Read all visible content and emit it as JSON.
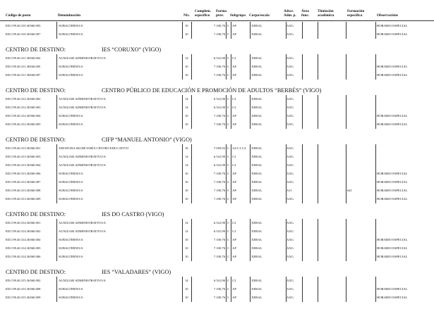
{
  "headers": {
    "codigo": "Código de posto",
    "denominacion": "Denominación",
    "niv": "Niv.",
    "complem": "Complem. específico",
    "forma": "Forma prov.",
    "subgrupo": "Subgrupo",
    "corpo": "Corpo/escala",
    "adscr": "Adscr. Adm. p.",
    "area": "Área func.",
    "titulacion": "Titulación académica",
    "formacion": "Formación específica",
    "observacions": "Observacións"
  },
  "section_label": "CENTRO DE DESTINO:",
  "sections": [
    {
      "name": "",
      "rows": [
        [
          "ED.C99.40.310.36560.005",
          "SUBALTERNO/A",
          "10",
          "7.100,76",
          "C",
          "AP",
          "XERAL",
          "AXG",
          "",
          "",
          "",
          "HORARIO ESPECIAL"
        ],
        [
          "ED.C99.40.310.36560.007",
          "SUBALTERNO/A",
          "10",
          "7.100,76",
          "C",
          "AP",
          "XERAL",
          "AXG",
          "",
          "",
          "",
          "HORARIO ESPECIAL"
        ]
      ]
    },
    {
      "name": "IES “CORUXO” (VIGO)",
      "rows": [
        [
          "ED.C99.40.311.36560.002",
          "AUXILIAR ADMINISTRATIVO/A",
          "14",
          "6.541,90",
          "C",
          "C2",
          "XERAL",
          "AXG",
          "",
          "",
          "",
          ""
        ],
        [
          "ED.C99.40.311.36560.005",
          "SUBALTERNO/A",
          "10",
          "7.100,76",
          "C",
          "AP",
          "XERAL",
          "AXG",
          "",
          "",
          "",
          "HORARIO ESPECIAL"
        ],
        [
          "ED.C99.40.311.36560.007",
          "SUBALTERNO/A",
          "10",
          "7.100,76",
          "C",
          "AP",
          "XERAL",
          "AXG",
          "",
          "",
          "",
          "HORARIO ESPECIAL"
        ]
      ]
    },
    {
      "name": "CENTRO PÚBLICO DE EDUCACIÓN E PROMOCIÓN DE ADULTOS “BERBÉS” (VIGO)",
      "rows": [
        [
          "ED.C99.40.312.36560.002",
          "AUXILIAR ADMINISTRATIVO/A",
          "14",
          "6.541,90",
          "C",
          "C2",
          "XERAL",
          "AXG",
          "",
          "",
          "",
          ""
        ],
        [
          "ED.C99.40.312.36560.003",
          "AUXILIAR ADMINISTRATIVO/A",
          "14",
          "6.541,90",
          "C",
          "C2",
          "XERAL",
          "AXG",
          "",
          "",
          "",
          ""
        ],
        [
          "ED.C99.40.312.36560.004",
          "SUBALTERNO/A",
          "10",
          "7.100,76",
          "C",
          "AP",
          "XERAL",
          "AXG",
          "",
          "",
          "",
          "HORARIO ESPECIAL"
        ],
        [
          "ED.C99.40.312.36560.005",
          "SUBALTERNO/A",
          "10",
          "7.100,76",
          "C",
          "AP",
          "XERAL",
          "AXG",
          "",
          "",
          "",
          "HORARIO ESPECIAL"
        ]
      ]
    },
    {
      "name": "CIFP “MANUEL ANTONIO” (VIGO)",
      "rows": [
        [
          "ED.C99.40.313.36560.001",
          "XEFATURA SECRETARÍA CENTRO EDUCATIVO",
          "18",
          "7.059,92",
          "C",
          "A2-C1-C2",
          "XERAL",
          "AXG",
          "",
          "",
          "",
          ""
        ],
        [
          "ED.C99.40.313.36560.003",
          "AUXILIAR ADMINISTRATIVO/A",
          "14",
          "6.541,90",
          "C",
          "C2",
          "XERAL",
          "AXG",
          "",
          "",
          "",
          ""
        ],
        [
          "ED.C99.40.313.36560.004",
          "AUXILIAR ADMINISTRATIVO/A",
          "14",
          "6.541,90",
          "C",
          "C2",
          "XERAL",
          "AXG",
          "",
          "",
          "",
          ""
        ],
        [
          "ED.C99.40.313.36560.006",
          "SUBALTERNO/A",
          "10",
          "7.100,76",
          "C",
          "AP",
          "XERAL",
          "AXG",
          "",
          "",
          "",
          "HORARIO ESPECIAL"
        ],
        [
          "ED.C99.40.313.36560.007",
          "SUBALTERNO/A",
          "10",
          "7.100,76",
          "C",
          "AP",
          "XERAL",
          "AXG",
          "",
          "",
          "",
          "HORARIO ESPECIAL"
        ],
        [
          "ED.C99.40.313.36560.008",
          "SUBALTERNO/A",
          "10",
          "7.100,76",
          "C",
          "AP",
          "XERAL",
          "A11",
          "",
          "",
          "641",
          "HORARIO ESPECIAL"
        ],
        [
          "ED.C99.40.313.36560.009",
          "SUBALTERNO/A",
          "10",
          "7.100,76",
          "C",
          "AP",
          "XERAL",
          "AXG",
          "",
          "",
          "",
          "HORARIO ESPECIAL"
        ]
      ]
    },
    {
      "name": "IES DO CASTRO (VIGO)",
      "rows": [
        [
          "ED.C99.40.314.36560.001",
          "AUXILIAR ADMINISTRATIVO/A",
          "14",
          "6.541,90",
          "C",
          "C2",
          "XERAL",
          "AXG",
          "",
          "",
          "",
          ""
        ],
        [
          "ED.C99.40.314.36560.002",
          "AUXILIAR ADMINISTRATIVO/A",
          "14",
          "6.541,90",
          "C",
          "C2",
          "XERAL",
          "AXG",
          "",
          "",
          "",
          ""
        ],
        [
          "ED.C99.40.314.36560.004",
          "SUBALTERNO/A",
          "10",
          "7.100,76",
          "C",
          "AP",
          "XERAL",
          "AXG",
          "",
          "",
          "",
          "HORARIO ESPECIAL"
        ],
        [
          "ED.C99.40.314.36560.005",
          "SUBALTERNO/A",
          "10",
          "7.100,76",
          "C",
          "AP",
          "XERAL",
          "AXG",
          "",
          "",
          "",
          "HORARIO ESPECIAL"
        ],
        [
          "ED.C99.40.314.36560.006",
          "SUBALTERNO/A",
          "10",
          "7.100,76",
          "C",
          "AP",
          "XERAL",
          "AXG",
          "",
          "",
          "",
          "HORARIO ESPECIAL"
        ]
      ]
    },
    {
      "name": "IES “VALADARES” (VIGO)",
      "rows": [
        [
          "ED.C99.40.315.36560.002",
          "AUXILIAR ADMINISTRATIVO/A",
          "14",
          "6.541,90",
          "C",
          "C2",
          "XERAL",
          "AXG",
          "",
          "",
          "",
          ""
        ],
        [
          "ED.C99.40.315.36560.008",
          "SUBALTERNO/A",
          "10",
          "7.100,76",
          "C",
          "AP",
          "XERAL",
          "AXG",
          "",
          "",
          "",
          "HORARIO ESPECIAL"
        ],
        [
          "ED.C99.40.315.36560.009",
          "SUBALTERNO/A",
          "10",
          "7.100,76",
          "C",
          "AP",
          "XERAL",
          "AXG",
          "",
          "",
          "",
          "HORARIO ESPECIAL"
        ]
      ]
    }
  ]
}
